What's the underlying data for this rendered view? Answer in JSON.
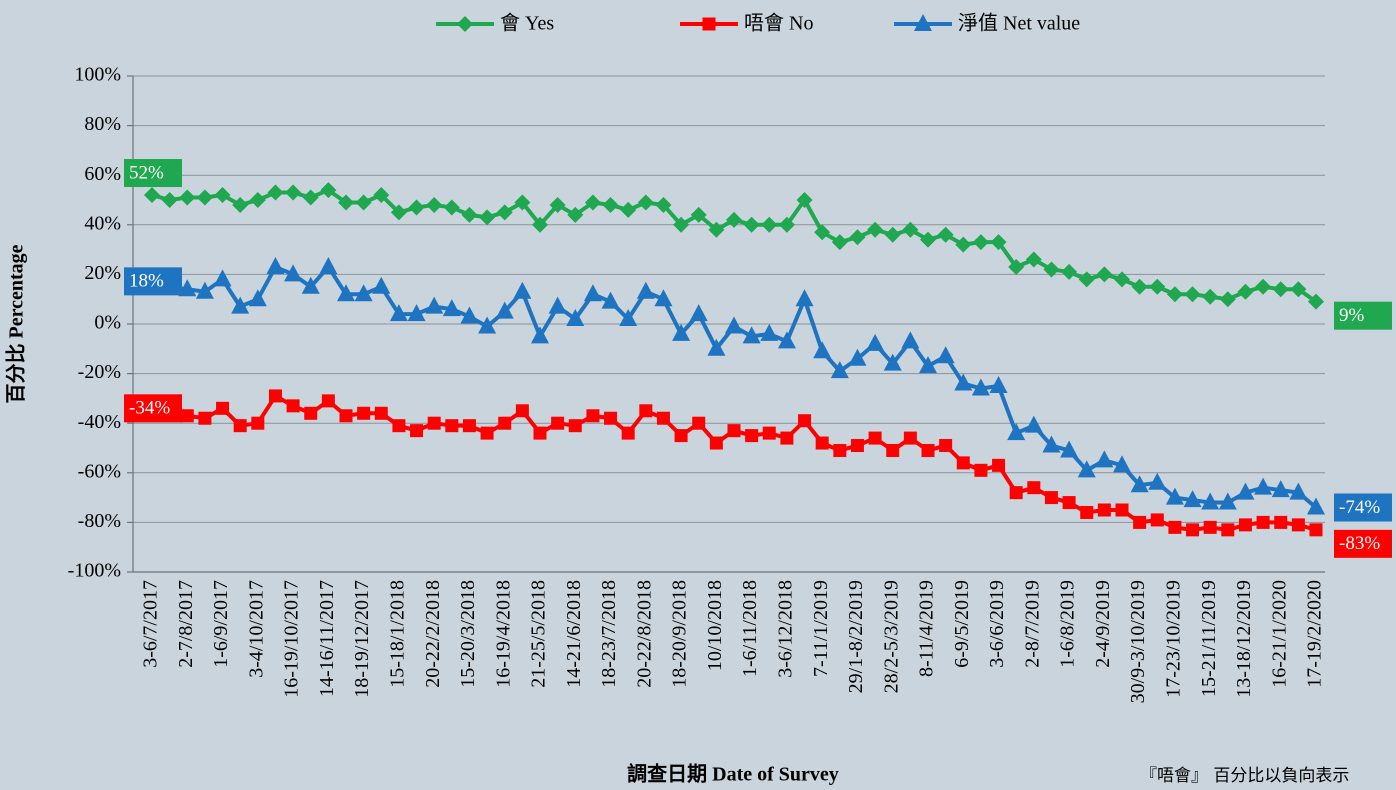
{
  "chart_data": {
    "type": "line",
    "x_label": "調查日期 Date of Survey",
    "y_label": "百分比 Percentage",
    "note": "『唔會』 百分比以負向表示",
    "legend": "top",
    "grid": true,
    "ylim": [
      -100,
      100
    ],
    "yticks": [
      {
        "value": -100,
        "label": "-100%"
      },
      {
        "value": -80,
        "label": "-80%"
      },
      {
        "value": -60,
        "label": "-60%"
      },
      {
        "value": -40,
        "label": "-40%"
      },
      {
        "value": -20,
        "label": "-20%"
      },
      {
        "value": 0,
        "label": "0%"
      },
      {
        "value": 20,
        "label": "20%"
      },
      {
        "value": 40,
        "label": "40%"
      },
      {
        "value": 60,
        "label": "60%"
      },
      {
        "value": 80,
        "label": "80%"
      },
      {
        "value": 100,
        "label": "100%"
      }
    ],
    "categories": [
      "3-6/7/2017",
      null,
      "2-7/8/2017",
      null,
      "1-6/9/2017",
      null,
      "3-4/10/2017",
      null,
      "16-19/10/2017",
      null,
      "14-16/11/2017",
      null,
      "18-19/12/2017",
      null,
      "15-18/1/2018",
      null,
      "20-22/2/2018",
      null,
      "15-20/3/2018",
      null,
      "16-19/4/2018",
      null,
      "21-25/5/2018",
      null,
      "14-21/6/2018",
      null,
      "18-23/7/2018",
      null,
      "20-22/8/2018",
      null,
      "18-20/9/2018",
      null,
      "10/10/2018",
      null,
      "1-6/11/2018",
      null,
      "3-6/12/2018",
      null,
      "7-11/1/2019",
      null,
      "29/1-8/2/2019",
      null,
      "28/2-5/3/2019",
      null,
      "8-11/4/2019",
      null,
      "6-9/5/2019",
      null,
      "3-6/6/2019",
      null,
      "2-8/7/2019",
      null,
      "1-6/8/2019",
      null,
      "2-4/9/2019",
      null,
      "30/9-3/10/2019",
      null,
      "17-23/10/2019",
      null,
      "15-21/11/2019",
      null,
      "13-18/12/2019",
      null,
      "16-21/1/2020",
      null,
      "17-19/2/2020"
    ],
    "series": [
      {
        "name": "會 Yes",
        "color": "#1fa84f",
        "marker": "diamond",
        "values": [
          52,
          50,
          51,
          51,
          52,
          48,
          50,
          53,
          53,
          51,
          54,
          49,
          49,
          52,
          45,
          47,
          48,
          47,
          44,
          43,
          45,
          49,
          40,
          48,
          44,
          49,
          48,
          46,
          49,
          48,
          40,
          44,
          38,
          42,
          40,
          40,
          40,
          50,
          37,
          33,
          35,
          38,
          36,
          38,
          34,
          36,
          32,
          33,
          33,
          23,
          26,
          22,
          21,
          18,
          20,
          18,
          15,
          15,
          12,
          12,
          11,
          10,
          13,
          15,
          14,
          14,
          9
        ],
        "value_labels": [
          "52%",
          null,
          null,
          null,
          null,
          null,
          null,
          null,
          null,
          null,
          null,
          null,
          null,
          null,
          null,
          null,
          null,
          null,
          null,
          null,
          null,
          null,
          null,
          null,
          null,
          null,
          null,
          null,
          null,
          null,
          null,
          null,
          null,
          null,
          null,
          null,
          null,
          null,
          null,
          null,
          null,
          null,
          null,
          null,
          null,
          null,
          null,
          null,
          null,
          null,
          null,
          null,
          null,
          null,
          null,
          null,
          null,
          null,
          null,
          null,
          null,
          null,
          null,
          null,
          null,
          null,
          "9%"
        ]
      },
      {
        "name": "唔會 No",
        "color": "#ff0000",
        "marker": "square",
        "values": [
          -34,
          -35,
          -37,
          -38,
          -34,
          -41,
          -40,
          -29,
          -33,
          -36,
          -31,
          -37,
          -36,
          -36,
          -41,
          -43,
          -40,
          -41,
          -41,
          -44,
          -40,
          -35,
          -44,
          -40,
          -41,
          -37,
          -38,
          -44,
          -35,
          -38,
          -45,
          -40,
          -48,
          -43,
          -45,
          -44,
          -46,
          -39,
          -48,
          -51,
          -49,
          -46,
          -51,
          -46,
          -51,
          -49,
          -56,
          -59,
          -57,
          -68,
          -66,
          -70,
          -72,
          -76,
          -75,
          -75,
          -80,
          -79,
          -82,
          -83,
          -82,
          -83,
          -81,
          -80,
          -80,
          -81,
          -83
        ],
        "value_labels": [
          "-34%",
          null,
          null,
          null,
          null,
          null,
          null,
          null,
          null,
          null,
          null,
          null,
          null,
          null,
          null,
          null,
          null,
          null,
          null,
          null,
          null,
          null,
          null,
          null,
          null,
          null,
          null,
          null,
          null,
          null,
          null,
          null,
          null,
          null,
          null,
          null,
          null,
          null,
          null,
          null,
          null,
          null,
          null,
          null,
          null,
          null,
          null,
          null,
          null,
          null,
          null,
          null,
          null,
          null,
          null,
          null,
          null,
          null,
          null,
          null,
          null,
          null,
          null,
          null,
          null,
          null,
          "-83%"
        ]
      },
      {
        "name": "淨值 Net value",
        "color": "#1e74c0",
        "marker": "triangle",
        "values": [
          18,
          15,
          14,
          13,
          18,
          7,
          10,
          23,
          20,
          15,
          23,
          12,
          12,
          15,
          4,
          4,
          7,
          6,
          3,
          -1,
          5,
          13,
          -5,
          7,
          2,
          12,
          9,
          2,
          13,
          10,
          -4,
          4,
          -10,
          -1,
          -5,
          -4,
          -7,
          10,
          -11,
          -19,
          -14,
          -8,
          -16,
          -7,
          -17,
          -13,
          -24,
          -26,
          -25,
          -44,
          -41,
          -49,
          -51,
          -59,
          -55,
          -57,
          -65,
          -64,
          -70,
          -71,
          -72,
          -72,
          -68,
          -66,
          -67,
          -68,
          -74
        ],
        "value_labels": [
          "18%",
          null,
          null,
          null,
          null,
          null,
          null,
          null,
          null,
          null,
          null,
          null,
          null,
          null,
          null,
          null,
          null,
          null,
          null,
          null,
          null,
          null,
          null,
          null,
          null,
          null,
          null,
          null,
          null,
          null,
          null,
          null,
          null,
          null,
          null,
          null,
          null,
          null,
          null,
          null,
          null,
          null,
          null,
          null,
          null,
          null,
          null,
          null,
          null,
          null,
          null,
          null,
          null,
          null,
          null,
          null,
          null,
          null,
          null,
          null,
          null,
          null,
          null,
          null,
          null,
          null,
          "-74%"
        ]
      }
    ]
  }
}
